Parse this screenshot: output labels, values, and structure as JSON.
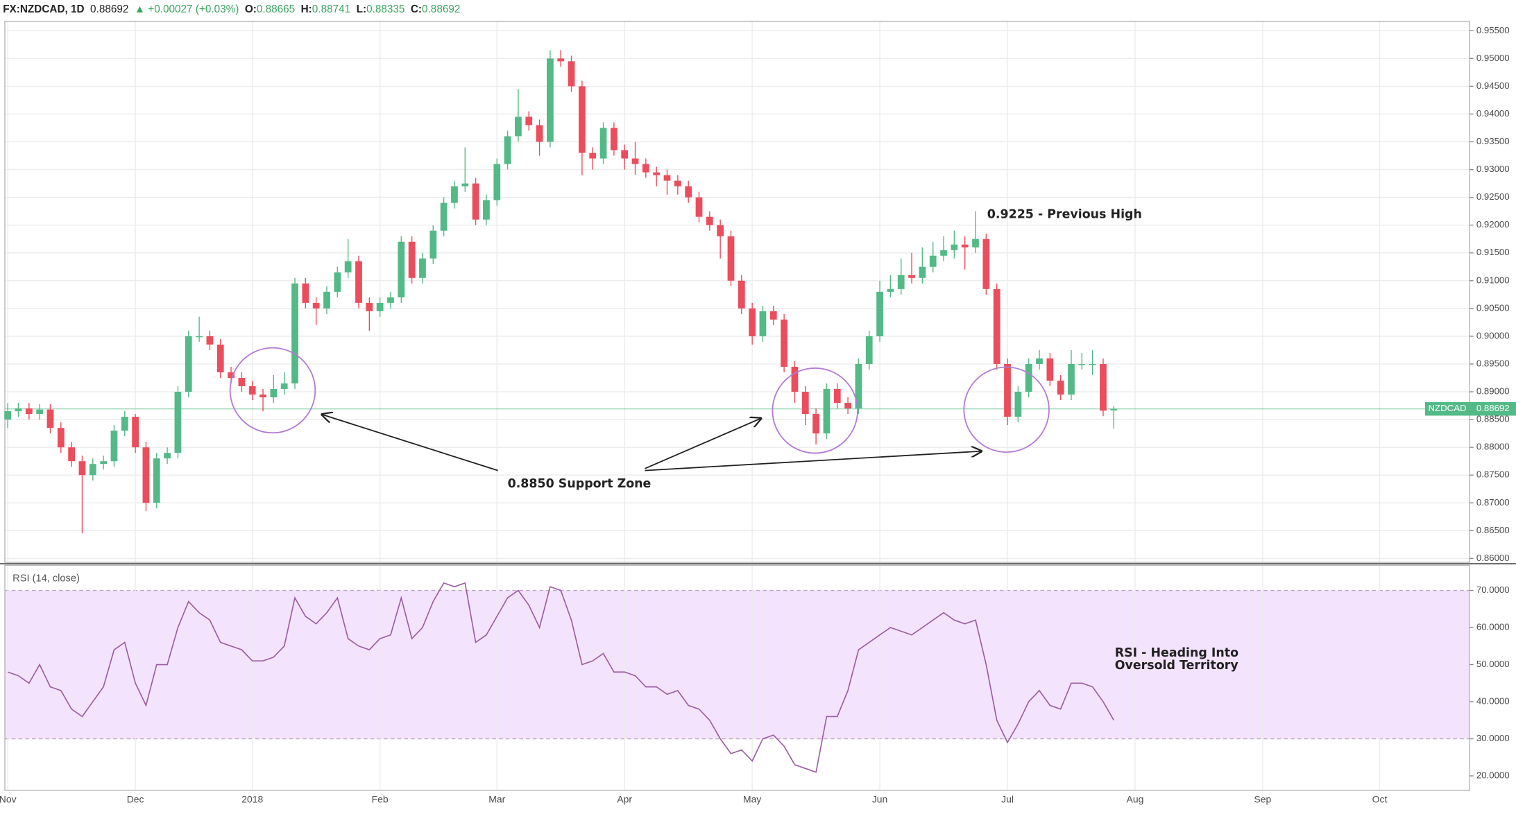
{
  "chart_data": [
    {
      "type": "candlestick",
      "title": "FX:NZDCAD, 1D",
      "last": "0.88692",
      "change": "▲ +0.00027 (+0.03%)",
      "ohlc": [
        {
          "key": "O:",
          "text": "0.88665"
        },
        {
          "key": "H:",
          "text": "0.88741"
        },
        {
          "key": "L:",
          "text": "0.88335"
        },
        {
          "key": "C:",
          "text": "0.88692"
        }
      ],
      "categories": [
        "Nov",
        null,
        null,
        null,
        null,
        null,
        null,
        null,
        null,
        null,
        null,
        null,
        "Dec",
        null,
        null,
        null,
        null,
        null,
        null,
        null,
        null,
        null,
        null,
        "2018",
        null,
        null,
        null,
        null,
        null,
        null,
        null,
        null,
        null,
        null,
        null,
        "Feb",
        null,
        null,
        null,
        null,
        null,
        null,
        null,
        null,
        null,
        null,
        "Mar",
        null,
        null,
        null,
        null,
        null,
        null,
        null,
        null,
        null,
        null,
        null,
        "Apr",
        null,
        null,
        null,
        null,
        null,
        null,
        null,
        null,
        null,
        null,
        null,
        "May",
        null,
        null,
        null,
        null,
        null,
        null,
        null,
        null,
        null,
        null,
        null,
        "Jun",
        null,
        null,
        null,
        null,
        null,
        null,
        null,
        null,
        null,
        null,
        null,
        "Jul",
        null,
        null,
        null,
        null,
        null,
        null,
        null,
        null,
        null,
        null,
        null,
        "Aug",
        null,
        null,
        null,
        null,
        null,
        null,
        null,
        null,
        null,
        null,
        null,
        "Sep",
        null,
        null,
        null,
        null,
        null,
        null,
        null,
        null,
        null,
        null,
        "Oct",
        null,
        null,
        null,
        null,
        null,
        null,
        null,
        null
      ],
      "open": [
        0.885,
        0.8865,
        0.887,
        0.886,
        0.8868,
        0.8835,
        0.88,
        0.8775,
        0.875,
        0.877,
        0.8775,
        0.883,
        0.8855,
        0.88,
        0.87,
        0.878,
        0.879,
        0.89,
        0.9,
        0.9,
        0.8985,
        0.8935,
        0.8925,
        0.891,
        0.8895,
        0.889,
        0.8905,
        0.8915,
        0.9095,
        0.906,
        0.905,
        0.908,
        0.9115,
        0.9135,
        0.906,
        0.9045,
        0.906,
        0.907,
        0.917,
        0.9105,
        0.914,
        0.919,
        0.924,
        0.927,
        0.9275,
        0.921,
        0.9245,
        0.931,
        0.936,
        0.9395,
        0.938,
        0.935,
        0.95,
        0.9495,
        0.945,
        0.933,
        0.932,
        0.9375,
        0.9335,
        0.932,
        0.931,
        0.9295,
        0.929,
        0.928,
        0.927,
        0.925,
        0.9215,
        0.92,
        0.918,
        0.91,
        0.905,
        0.9,
        0.9045,
        0.903,
        0.8945,
        0.89,
        0.886,
        0.8825,
        0.8905,
        0.888,
        0.887,
        0.895,
        0.9,
        0.908,
        0.9085,
        0.911,
        0.9105,
        0.9125,
        0.9145,
        0.9155,
        0.9165,
        0.916,
        0.9175,
        0.9085,
        0.895,
        0.8855,
        0.89,
        0.895,
        0.896,
        0.892,
        0.8895,
        0.895,
        0.895,
        0.895,
        0.88665,
        null,
        null,
        null,
        null,
        null,
        null,
        null,
        null,
        null,
        null,
        null,
        null,
        null,
        null,
        null,
        null,
        null,
        null,
        null,
        null,
        null,
        null,
        null,
        null,
        null,
        null,
        null,
        null,
        null,
        null,
        null,
        null,
        null
      ],
      "high": [
        0.888,
        0.888,
        0.888,
        0.8878,
        0.8878,
        0.8845,
        0.881,
        0.8785,
        0.878,
        0.8785,
        0.884,
        0.8865,
        0.886,
        0.881,
        0.879,
        0.88,
        0.891,
        0.901,
        0.9035,
        0.901,
        0.8995,
        0.8945,
        0.8935,
        0.892,
        0.8905,
        0.893,
        0.8935,
        0.9105,
        0.9105,
        0.907,
        0.909,
        0.9125,
        0.9175,
        0.9145,
        0.907,
        0.907,
        0.908,
        0.918,
        0.918,
        0.915,
        0.92,
        0.925,
        0.928,
        0.934,
        0.9285,
        0.9255,
        0.932,
        0.937,
        0.9445,
        0.9405,
        0.939,
        0.9515,
        0.9515,
        0.9505,
        0.946,
        0.934,
        0.9385,
        0.9385,
        0.9345,
        0.935,
        0.932,
        0.9305,
        0.93,
        0.929,
        0.928,
        0.926,
        0.9225,
        0.921,
        0.919,
        0.911,
        0.906,
        0.9055,
        0.9055,
        0.904,
        0.8955,
        0.891,
        0.887,
        0.8915,
        0.8915,
        0.889,
        0.896,
        0.901,
        0.91,
        0.911,
        0.914,
        0.915,
        0.916,
        0.917,
        0.918,
        0.919,
        0.918,
        0.9225,
        0.9185,
        0.9095,
        0.896,
        0.891,
        0.896,
        0.8975,
        0.897,
        0.893,
        0.8975,
        0.897,
        0.8975,
        0.896,
        0.88741,
        null,
        null,
        null,
        null,
        null,
        null,
        null,
        null,
        null,
        null,
        null,
        null,
        null,
        null,
        null,
        null,
        null,
        null,
        null,
        null,
        null,
        null,
        null,
        null,
        null,
        null,
        null,
        null,
        null,
        null,
        null,
        null,
        null
      ],
      "low": [
        0.8835,
        0.8855,
        0.885,
        0.885,
        0.8825,
        0.879,
        0.8765,
        0.8645,
        0.874,
        0.876,
        0.8765,
        0.882,
        0.879,
        0.8685,
        0.869,
        0.877,
        0.878,
        0.889,
        0.899,
        0.8975,
        0.8925,
        0.8915,
        0.89,
        0.8885,
        0.8865,
        0.888,
        0.8895,
        0.8905,
        0.905,
        0.902,
        0.904,
        0.907,
        0.9105,
        0.905,
        0.901,
        0.9035,
        0.905,
        0.906,
        0.9095,
        0.9095,
        0.913,
        0.918,
        0.923,
        0.926,
        0.92,
        0.92,
        0.9235,
        0.93,
        0.935,
        0.937,
        0.9325,
        0.934,
        0.9485,
        0.944,
        0.929,
        0.93,
        0.931,
        0.9325,
        0.93,
        0.929,
        0.9285,
        0.927,
        0.9255,
        0.9255,
        0.924,
        0.9205,
        0.919,
        0.914,
        0.909,
        0.904,
        0.8985,
        0.899,
        0.902,
        0.8935,
        0.888,
        0.884,
        0.8805,
        0.8815,
        0.887,
        0.886,
        0.886,
        0.894,
        0.899,
        0.907,
        0.9075,
        0.9095,
        0.9095,
        0.9115,
        0.9135,
        0.914,
        0.912,
        0.915,
        0.9075,
        0.894,
        0.884,
        0.8845,
        0.889,
        0.894,
        0.891,
        0.8885,
        0.8885,
        0.894,
        0.893,
        0.8856,
        0.88335,
        null,
        null,
        null,
        null,
        null,
        null,
        null,
        null,
        null,
        null,
        null,
        null,
        null,
        null,
        null,
        null,
        null,
        null,
        null,
        null,
        null,
        null,
        null,
        null,
        null,
        null,
        null,
        null,
        null,
        null,
        null,
        null,
        null
      ],
      "close": [
        0.8865,
        0.887,
        0.886,
        0.8868,
        0.8835,
        0.88,
        0.8775,
        0.875,
        0.877,
        0.8775,
        0.883,
        0.8855,
        0.88,
        0.87,
        0.878,
        0.879,
        0.89,
        0.9,
        0.9,
        0.8985,
        0.8935,
        0.8925,
        0.891,
        0.8895,
        0.889,
        0.8905,
        0.8915,
        0.9095,
        0.906,
        0.905,
        0.908,
        0.9115,
        0.9135,
        0.906,
        0.9045,
        0.906,
        0.907,
        0.917,
        0.9105,
        0.914,
        0.919,
        0.924,
        0.927,
        0.9275,
        0.921,
        0.9245,
        0.931,
        0.936,
        0.9395,
        0.938,
        0.935,
        0.95,
        0.9495,
        0.945,
        0.933,
        0.932,
        0.9375,
        0.9335,
        0.932,
        0.931,
        0.9295,
        0.929,
        0.928,
        0.927,
        0.925,
        0.9215,
        0.92,
        0.918,
        0.91,
        0.905,
        0.9,
        0.9045,
        0.903,
        0.8945,
        0.89,
        0.886,
        0.8825,
        0.8905,
        0.888,
        0.887,
        0.895,
        0.9,
        0.908,
        0.9085,
        0.911,
        0.9105,
        0.9125,
        0.9145,
        0.9155,
        0.9165,
        0.916,
        0.9175,
        0.9085,
        0.895,
        0.8855,
        0.89,
        0.895,
        0.896,
        0.892,
        0.8895,
        0.895,
        0.895,
        0.895,
        0.8866,
        0.88692,
        null,
        null,
        null,
        null,
        null,
        null,
        null,
        null,
        null,
        null,
        null,
        null,
        null,
        null,
        null,
        null,
        null,
        null,
        null,
        null,
        null,
        null,
        null,
        null,
        null,
        null,
        null,
        null,
        null,
        null,
        null,
        null,
        null
      ],
      "up_color": "#53b987",
      "down_color": "#eb4d5c",
      "ylim": [
        0.8593,
        0.9567
      ],
      "yticks": [
        {
          "value": 0.86,
          "label": "0.86000"
        },
        {
          "value": 0.865,
          "label": "0.86500"
        },
        {
          "value": 0.87,
          "label": "0.87000"
        },
        {
          "value": 0.875,
          "label": "0.87500"
        },
        {
          "value": 0.88,
          "label": "0.88000"
        },
        {
          "value": 0.885,
          "label": "0.88500"
        },
        {
          "value": 0.89,
          "label": "0.89000"
        },
        {
          "value": 0.895,
          "label": "0.89500"
        },
        {
          "value": 0.9,
          "label": "0.90000"
        },
        {
          "value": 0.905,
          "label": "0.90500"
        },
        {
          "value": 0.91,
          "label": "0.91000"
        },
        {
          "value": 0.915,
          "label": "0.91500"
        },
        {
          "value": 0.92,
          "label": "0.92000"
        },
        {
          "value": 0.925,
          "label": "0.92500"
        },
        {
          "value": 0.93,
          "label": "0.93000"
        },
        {
          "value": 0.935,
          "label": "0.93500"
        },
        {
          "value": 0.94,
          "label": "0.94000"
        },
        {
          "value": 0.945,
          "label": "0.94500"
        },
        {
          "value": 0.95,
          "label": "0.95000"
        },
        {
          "value": 0.955,
          "label": "0.95500"
        }
      ],
      "grid": true,
      "price_line": {
        "name": "NZDCAD",
        "value": 0.88692,
        "label": "0.88692",
        "color": "#53b987"
      },
      "annotations": [
        "0.9225 - Previous High",
        "0.8850 Support Zone"
      ]
    },
    {
      "type": "line",
      "title": "RSI (14, close)",
      "values": [
        48,
        47,
        45,
        50,
        44,
        43,
        38,
        36,
        40,
        44,
        54,
        56,
        45,
        39,
        50,
        50,
        60,
        67,
        64,
        62,
        56,
        55,
        54,
        51,
        51,
        52,
        55,
        68,
        63,
        61,
        64,
        68,
        57,
        55,
        54,
        57,
        58,
        68,
        57,
        60,
        67,
        72,
        71,
        72,
        56,
        58,
        63,
        68,
        70,
        66,
        60,
        71,
        70,
        62,
        50,
        51,
        53,
        48,
        48,
        47,
        44,
        44,
        42,
        43,
        39,
        38,
        35,
        30,
        26,
        27,
        24,
        30,
        31,
        28,
        23,
        22,
        21,
        36,
        36,
        43,
        54,
        56,
        58,
        60,
        59,
        58,
        60,
        62,
        64,
        62,
        61,
        62,
        50,
        35,
        29,
        34,
        40,
        43,
        39,
        38,
        45,
        45,
        44,
        40,
        35,
        null,
        null,
        null,
        null,
        null,
        null,
        null,
        null,
        null,
        null,
        null,
        null,
        null,
        null,
        null,
        null,
        null,
        null,
        null,
        null,
        null,
        null,
        null,
        null,
        null,
        null,
        null,
        null,
        null,
        null,
        null,
        null,
        null
      ],
      "color": "#9b5fa3",
      "band": [
        30,
        70
      ],
      "band_color": "#f4e3fc",
      "ylim": [
        16.1,
        76.8
      ],
      "yticks": [
        {
          "value": 20,
          "label": "20.0000"
        },
        {
          "value": 30,
          "label": "30.0000"
        },
        {
          "value": 40,
          "label": "40.0000"
        },
        {
          "value": 50,
          "label": "50.0000"
        },
        {
          "value": 60,
          "label": "60.0000"
        },
        {
          "value": 70,
          "label": "70.0000"
        }
      ],
      "annotations": [
        "RSI - Heading Into",
        "Oversold Territory"
      ]
    }
  ]
}
